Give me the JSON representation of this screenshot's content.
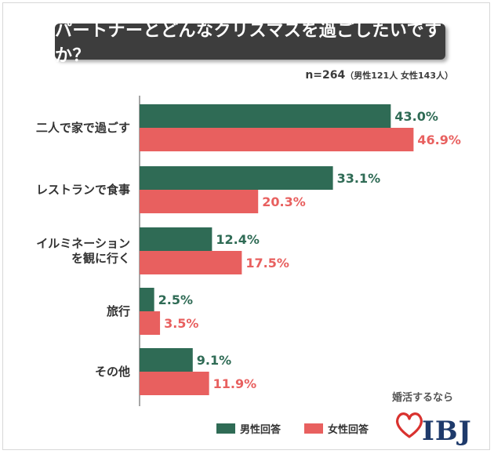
{
  "header": {
    "title": "パートナーとどんなクリスマスを過ごしたいですか？",
    "sample_n": "n=264",
    "sample_breakdown": "（男性121人 女性143人）"
  },
  "legend": {
    "male_label": "男性回答",
    "female_label": "女性回答"
  },
  "logo": {
    "tagline": "婚活するなら",
    "brand": "IBJ"
  },
  "colors": {
    "male": "#2f6b55",
    "female": "#e8605f",
    "axis": "#888888"
  },
  "chart_data": {
    "type": "bar",
    "orientation": "horizontal",
    "title": "パートナーとどんなクリスマスを過ごしたいですか？",
    "categories": [
      [
        "二人で家で過ごす"
      ],
      [
        "レストランで食事"
      ],
      [
        "イルミネーション",
        "を観に行く"
      ],
      [
        "旅行"
      ],
      [
        "その他"
      ]
    ],
    "series": [
      {
        "name": "男性回答",
        "values": [
          43.0,
          33.1,
          12.4,
          2.5,
          9.1
        ]
      },
      {
        "name": "女性回答",
        "values": [
          46.9,
          20.3,
          17.5,
          3.5,
          11.9
        ]
      }
    ],
    "value_suffix": "%",
    "xlim": [
      0,
      50
    ],
    "grid": false,
    "legend_position": "bottom"
  }
}
